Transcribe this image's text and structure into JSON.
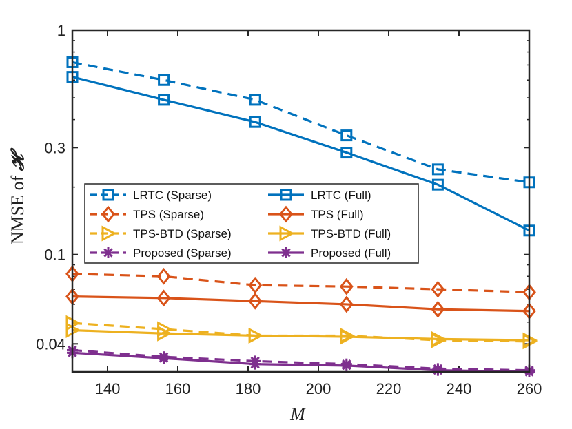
{
  "chart_data": {
    "type": "line",
    "xlabel": "M",
    "ylabel_prefix": "NMSE of ",
    "ylabel_symbol": "𝓗",
    "yscale": "log",
    "xlim": [
      130,
      260
    ],
    "ylim": [
      0.03,
      1
    ],
    "xticks": [
      140,
      160,
      180,
      200,
      220,
      240,
      260
    ],
    "xtick_labels": [
      "140",
      "160",
      "180",
      "200",
      "220",
      "240",
      "260"
    ],
    "yticks": [
      0.04,
      0.1,
      0.3,
      1
    ],
    "ytick_labels": [
      "0.04",
      "0.1",
      "0.3",
      "1"
    ],
    "legend_location": "center-left",
    "x": [
      130,
      156,
      182,
      208,
      234,
      260
    ],
    "series": [
      {
        "name": "LRTC (Sparse)",
        "color": "#0072BD",
        "marker": "square",
        "dash": true,
        "values": [
          0.72,
          0.6,
          0.49,
          0.34,
          0.24,
          0.21
        ]
      },
      {
        "name": "LRTC (Full)",
        "color": "#0072BD",
        "marker": "square",
        "dash": false,
        "values": [
          0.62,
          0.49,
          0.39,
          0.285,
          0.205,
          0.128
        ]
      },
      {
        "name": "TPS (Sparse)",
        "color": "#D95319",
        "marker": "diamond",
        "dash": true,
        "values": [
          0.082,
          0.08,
          0.073,
          0.072,
          0.07,
          0.068
        ]
      },
      {
        "name": "TPS (Full)",
        "color": "#D95319",
        "marker": "diamond",
        "dash": false,
        "values": [
          0.065,
          0.064,
          0.062,
          0.06,
          0.057,
          0.056
        ]
      },
      {
        "name": "TPS-BTD (Sparse)",
        "color": "#EDB120",
        "marker": "triangle-right",
        "dash": true,
        "values": [
          0.0495,
          0.0465,
          0.0435,
          0.0435,
          0.0415,
          0.041
        ]
      },
      {
        "name": "TPS-BTD (Full)",
        "color": "#EDB120",
        "marker": "triangle-right",
        "dash": false,
        "values": [
          0.046,
          0.0445,
          0.0435,
          0.043,
          0.042,
          0.0415
        ]
      },
      {
        "name": "Proposed (Sparse)",
        "color": "#7E2F8E",
        "marker": "asterisk",
        "dash": true,
        "values": [
          0.0375,
          0.035,
          0.0335,
          0.0325,
          0.031,
          0.0305
        ]
      },
      {
        "name": "Proposed (Full)",
        "color": "#7E2F8E",
        "marker": "asterisk",
        "dash": false,
        "values": [
          0.0365,
          0.0345,
          0.0325,
          0.032,
          0.0305,
          0.03
        ]
      }
    ]
  }
}
